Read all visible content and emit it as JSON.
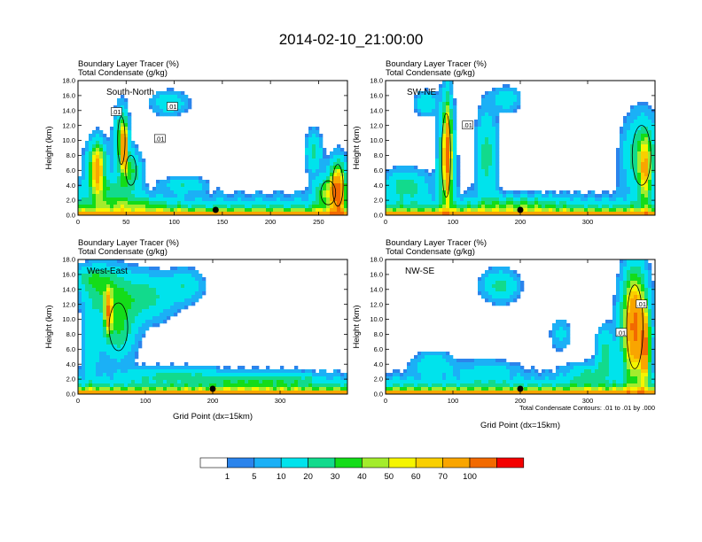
{
  "figure": {
    "title": "2014-02-10_21:00:00",
    "contour_note": "Total Condensate Contours: .01 to .01 by .000"
  },
  "colorbar": {
    "labels": [
      "1",
      "5",
      "10",
      "20",
      "30",
      "40",
      "50",
      "60",
      "70",
      "100"
    ],
    "colors": [
      "#ffffff",
      "#2b84ec",
      "#1bb0f6",
      "#00e3ec",
      "#12da8c",
      "#14dc19",
      "#a3ec2d",
      "#f5f500",
      "#f9cf00",
      "#f9a500",
      "#f26a00",
      "#f40000"
    ]
  },
  "chart_data": [
    {
      "type": "heatmap",
      "panel": "South-North",
      "title_lines": [
        "Boundary Layer Tracer    (%)",
        "Total Condensate    (g/kg)"
      ],
      "xlabel": "",
      "ylabel": "Height (km)",
      "xlim": [
        0,
        280
      ],
      "ylim": [
        0,
        18
      ],
      "xticks": [
        "0",
        "50",
        "100",
        "150",
        "200",
        "250"
      ],
      "xtick_values": [
        0,
        50,
        100,
        150,
        200,
        250
      ],
      "yticks": [
        "0.0",
        "2.0",
        "4.0",
        "6.0",
        "8.0",
        "10.0",
        "12.0",
        "14.0",
        "16.0",
        "18.0"
      ],
      "marker_x": 143,
      "contour_labels": [
        ".01",
        ".01",
        ".01"
      ],
      "contour_label_pos": [
        [
          40,
          13.8
        ],
        [
          98,
          14.5
        ],
        [
          85,
          10.2
        ]
      ],
      "blobs": [
        [
          45,
          10,
          7,
          4,
          6
        ],
        [
          55,
          6,
          10,
          2.5,
          5
        ],
        [
          20,
          7,
          12,
          3,
          4
        ],
        [
          30,
          3.5,
          25,
          1.5,
          4
        ],
        [
          270,
          4,
          10,
          3.5,
          5
        ],
        [
          245,
          8.5,
          8,
          2.5,
          4
        ],
        [
          95,
          15,
          18,
          1.5,
          3
        ],
        [
          260,
          3,
          14,
          2,
          6
        ],
        [
          110,
          4,
          20,
          1,
          3
        ],
        [
          50,
          1.5,
          40,
          1,
          4
        ]
      ],
      "near": [
        [
          270,
          3,
          6,
          3,
          8
        ],
        [
          48,
          9,
          3,
          3,
          9
        ],
        [
          20,
          6,
          6,
          3,
          7
        ]
      ]
    },
    {
      "type": "heatmap",
      "panel": "SW-NE",
      "title_lines": [
        "Boundary Layer Tracer    (%)",
        "Total Condensate    (g/kg)"
      ],
      "xlabel": "",
      "ylabel": "Height (km)",
      "xlim": [
        0,
        400
      ],
      "ylim": [
        0,
        18
      ],
      "xticks": [
        "0",
        "100",
        "200",
        "300"
      ],
      "xtick_values": [
        0,
        100,
        200,
        300
      ],
      "yticks": [
        "0.0",
        "2.0",
        "4.0",
        "6.0",
        "8.0",
        "10.0",
        "12.0",
        "14.0",
        "16.0",
        "18.0"
      ],
      "marker_x": 200,
      "contour_labels": [
        ".01"
      ],
      "contour_label_pos": [
        [
          122,
          12
        ]
      ],
      "blobs": [
        [
          90,
          8,
          12,
          7,
          6
        ],
        [
          150,
          8,
          15,
          6,
          4
        ],
        [
          380,
          8,
          25,
          5,
          5
        ],
        [
          30,
          4,
          30,
          2,
          4
        ],
        [
          180,
          15.5,
          18,
          1.5,
          3
        ],
        [
          200,
          1.5,
          60,
          1,
          3
        ],
        [
          60,
          15,
          15,
          1.5,
          3
        ]
      ],
      "near": [
        [
          92,
          8,
          5,
          6,
          9
        ],
        [
          385,
          6,
          8,
          4,
          6
        ]
      ]
    },
    {
      "type": "heatmap",
      "panel": "West-East",
      "title_lines": [
        "Boundary Layer Tracer    (%)",
        "Total Condensate    (g/kg)"
      ],
      "xlabel": "Grid Point (dx=15km)",
      "ylabel": "Height (km)",
      "xlim": [
        0,
        400
      ],
      "ylim": [
        0,
        18
      ],
      "xticks": [
        "0",
        "100",
        "200",
        "300"
      ],
      "xtick_values": [
        0,
        100,
        200,
        300
      ],
      "yticks": [
        "0.0",
        "2.0",
        "4.0",
        "6.0",
        "8.0",
        "10.0",
        "12.0",
        "14.0",
        "16.0",
        "18.0"
      ],
      "marker_x": 200,
      "contour_labels": [],
      "contour_label_pos": [],
      "blobs": [
        [
          40,
          14,
          35,
          3,
          4
        ],
        [
          100,
          13,
          40,
          3,
          4
        ],
        [
          60,
          9,
          25,
          4,
          5
        ],
        [
          20,
          7,
          12,
          5,
          3
        ],
        [
          160,
          14.5,
          25,
          2,
          3
        ],
        [
          20,
          15.5,
          25,
          1.5,
          3
        ],
        [
          140,
          2.5,
          60,
          1,
          3
        ],
        [
          250,
          1.8,
          60,
          1,
          3
        ],
        [
          320,
          2,
          40,
          0.8,
          2
        ]
      ],
      "near": [
        [
          45,
          11,
          5,
          2.5,
          9
        ]
      ]
    },
    {
      "type": "heatmap",
      "panel": "NW-SE",
      "title_lines": [
        "Boundary Layer Tracer    (%)",
        "Total Condensate    (g/kg)"
      ],
      "xlabel": "Grid Point (dx=15km)",
      "ylabel": "Height (km)",
      "xlim": [
        0,
        400
      ],
      "ylim": [
        0,
        18
      ],
      "xticks": [
        "0",
        "100",
        "200",
        "300"
      ],
      "xtick_values": [
        0,
        100,
        200,
        300
      ],
      "yticks": [
        "0.0",
        "2.0",
        "4.0",
        "6.0",
        "8.0",
        "10.0",
        "12.0",
        "14.0",
        "16.0",
        "18.0"
      ],
      "marker_x": 200,
      "contour_labels": [
        ".01",
        ".01"
      ],
      "contour_label_pos": [
        [
          380,
          12
        ],
        [
          350,
          8.2
        ]
      ],
      "blobs": [
        [
          370,
          9,
          22,
          7,
          6
        ],
        [
          325,
          5.5,
          12,
          3,
          4
        ],
        [
          170,
          14.5,
          25,
          2,
          4
        ],
        [
          70,
          4,
          25,
          1.5,
          3
        ],
        [
          150,
          3,
          40,
          1.5,
          2
        ],
        [
          260,
          8,
          15,
          2,
          2
        ],
        [
          300,
          2.5,
          30,
          1.5,
          3
        ]
      ],
      "near": [
        [
          370,
          9,
          14,
          6,
          8
        ],
        [
          385,
          6,
          6,
          4,
          9
        ]
      ]
    }
  ]
}
